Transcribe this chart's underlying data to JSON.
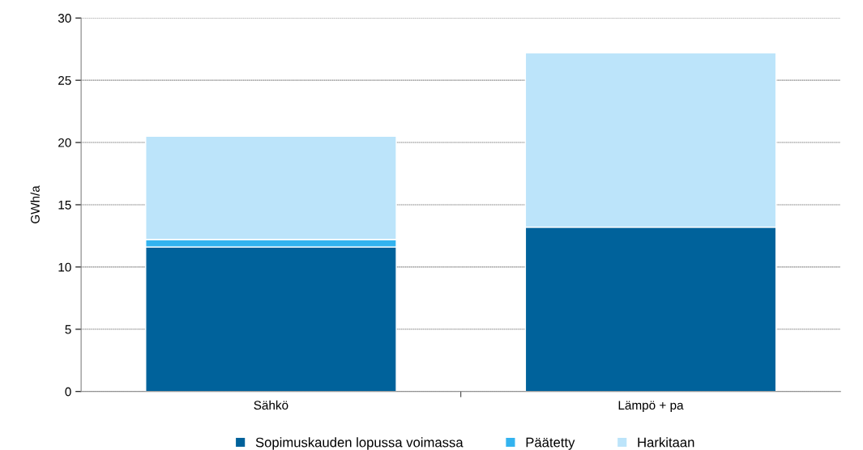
{
  "chart_data": {
    "type": "bar",
    "stacked": true,
    "ylabel": "GWh/a",
    "categories": [
      "Sähkö",
      "Lämpö + pa"
    ],
    "series": [
      {
        "name": "Sopimuskauden lopussa voimassa",
        "color": "#00629b",
        "values": [
          11.6,
          13.2
        ]
      },
      {
        "name": "Päätetty",
        "color": "#33b3ef",
        "values": [
          0.6,
          0
        ]
      },
      {
        "name": "Harkitaan",
        "color": "#bce4fa",
        "values": [
          8.3,
          14.0
        ]
      }
    ],
    "ylim": [
      0,
      30
    ],
    "yticks": [
      0,
      5,
      10,
      15,
      20,
      25,
      30
    ],
    "grid": "y",
    "legend": "bottom"
  }
}
